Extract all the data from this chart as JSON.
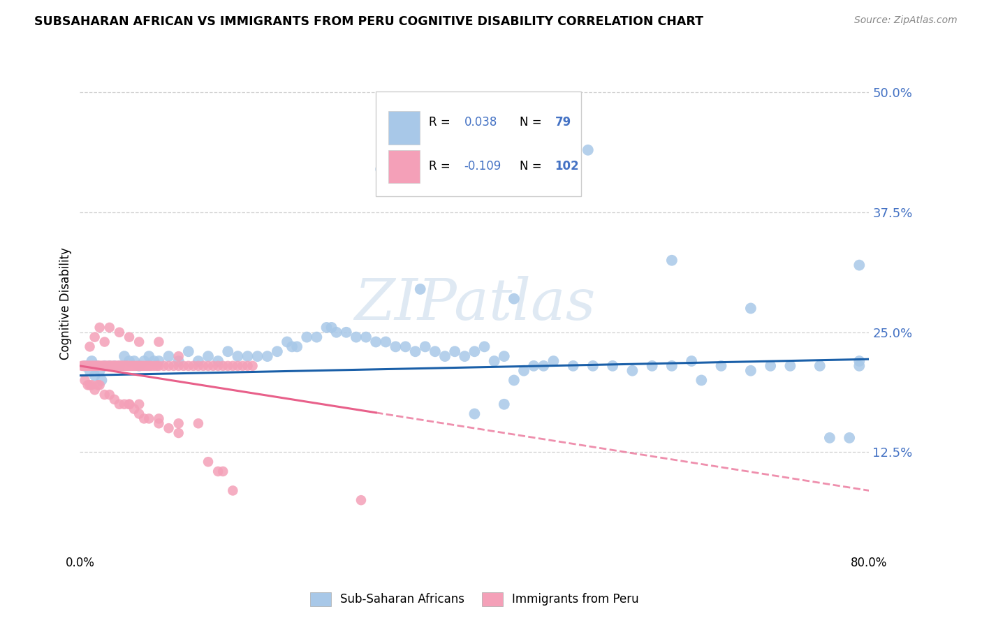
{
  "title": "SUBSAHARAN AFRICAN VS IMMIGRANTS FROM PERU COGNITIVE DISABILITY CORRELATION CHART",
  "source": "Source: ZipAtlas.com",
  "ylabel": "Cognitive Disability",
  "ytick_labels": [
    "50.0%",
    "37.5%",
    "25.0%",
    "12.5%"
  ],
  "ytick_values": [
    0.5,
    0.375,
    0.25,
    0.125
  ],
  "xmin": 0.0,
  "xmax": 0.8,
  "ymin": 0.02,
  "ymax": 0.54,
  "legend_label_blue": "Sub-Saharan Africans",
  "legend_label_pink": "Immigrants from Peru",
  "R_blue": "0.038",
  "N_blue": "79",
  "R_pink": "-0.109",
  "N_pink": "102",
  "blue_color": "#a8c8e8",
  "pink_color": "#f4a0b8",
  "trend_blue_color": "#1a5fa8",
  "trend_pink_color": "#e8608a",
  "watermark_text": "ZIPatlas",
  "background_color": "#ffffff",
  "grid_color": "#cccccc",
  "blue_x": [
    0.005,
    0.01,
    0.012,
    0.015,
    0.018,
    0.02,
    0.022,
    0.025,
    0.03,
    0.035,
    0.04,
    0.045,
    0.05,
    0.055,
    0.06,
    0.065,
    0.07,
    0.075,
    0.08,
    0.09,
    0.1,
    0.11,
    0.12,
    0.13,
    0.14,
    0.15,
    0.16,
    0.17,
    0.18,
    0.19,
    0.2,
    0.21,
    0.215,
    0.22,
    0.23,
    0.24,
    0.25,
    0.255,
    0.26,
    0.27,
    0.28,
    0.29,
    0.3,
    0.31,
    0.32,
    0.33,
    0.34,
    0.35,
    0.36,
    0.37,
    0.38,
    0.39,
    0.4,
    0.41,
    0.42,
    0.43,
    0.44,
    0.45,
    0.46,
    0.47,
    0.48,
    0.5,
    0.52,
    0.54,
    0.56,
    0.58,
    0.6,
    0.62,
    0.63,
    0.65,
    0.68,
    0.7,
    0.72,
    0.75,
    0.76,
    0.78,
    0.79,
    0.79,
    0.4,
    0.43
  ],
  "blue_y": [
    0.215,
    0.21,
    0.22,
    0.205,
    0.215,
    0.21,
    0.2,
    0.215,
    0.215,
    0.215,
    0.215,
    0.225,
    0.22,
    0.22,
    0.215,
    0.22,
    0.225,
    0.22,
    0.22,
    0.225,
    0.22,
    0.23,
    0.22,
    0.225,
    0.22,
    0.23,
    0.225,
    0.225,
    0.225,
    0.225,
    0.23,
    0.24,
    0.235,
    0.235,
    0.245,
    0.245,
    0.255,
    0.255,
    0.25,
    0.25,
    0.245,
    0.245,
    0.24,
    0.24,
    0.235,
    0.235,
    0.23,
    0.235,
    0.23,
    0.225,
    0.23,
    0.225,
    0.23,
    0.235,
    0.22,
    0.225,
    0.2,
    0.21,
    0.215,
    0.215,
    0.22,
    0.215,
    0.215,
    0.215,
    0.21,
    0.215,
    0.215,
    0.22,
    0.2,
    0.215,
    0.21,
    0.215,
    0.215,
    0.215,
    0.14,
    0.14,
    0.22,
    0.215,
    0.165,
    0.175
  ],
  "blue_outliers_x": [
    0.305,
    0.515,
    0.345,
    0.44,
    0.6,
    0.68,
    0.79
  ],
  "blue_outliers_y": [
    0.42,
    0.44,
    0.295,
    0.285,
    0.325,
    0.275,
    0.32
  ],
  "pink_x": [
    0.002,
    0.003,
    0.004,
    0.005,
    0.006,
    0.007,
    0.008,
    0.009,
    0.01,
    0.011,
    0.012,
    0.013,
    0.014,
    0.015,
    0.016,
    0.017,
    0.018,
    0.019,
    0.02,
    0.021,
    0.022,
    0.023,
    0.024,
    0.025,
    0.026,
    0.027,
    0.028,
    0.029,
    0.03,
    0.031,
    0.032,
    0.033,
    0.034,
    0.035,
    0.036,
    0.037,
    0.038,
    0.039,
    0.04,
    0.041,
    0.042,
    0.043,
    0.044,
    0.045,
    0.046,
    0.047,
    0.048,
    0.049,
    0.05,
    0.052,
    0.054,
    0.056,
    0.058,
    0.06,
    0.062,
    0.064,
    0.066,
    0.068,
    0.07,
    0.072,
    0.075,
    0.078,
    0.08,
    0.085,
    0.09,
    0.095,
    0.1,
    0.105,
    0.11,
    0.115,
    0.12,
    0.125,
    0.13,
    0.135,
    0.14,
    0.145,
    0.15,
    0.155,
    0.16,
    0.165,
    0.17,
    0.175,
    0.005,
    0.008,
    0.01,
    0.012,
    0.015,
    0.018,
    0.02,
    0.025,
    0.03,
    0.035,
    0.04,
    0.045,
    0.05,
    0.055,
    0.06,
    0.065,
    0.07,
    0.08,
    0.09,
    0.1
  ],
  "pink_y": [
    0.215,
    0.215,
    0.215,
    0.215,
    0.215,
    0.215,
    0.215,
    0.215,
    0.215,
    0.215,
    0.215,
    0.215,
    0.215,
    0.215,
    0.215,
    0.215,
    0.215,
    0.215,
    0.215,
    0.215,
    0.215,
    0.215,
    0.215,
    0.215,
    0.215,
    0.215,
    0.215,
    0.215,
    0.215,
    0.215,
    0.215,
    0.215,
    0.215,
    0.215,
    0.215,
    0.215,
    0.215,
    0.215,
    0.215,
    0.215,
    0.215,
    0.215,
    0.215,
    0.215,
    0.215,
    0.215,
    0.215,
    0.215,
    0.215,
    0.215,
    0.215,
    0.215,
    0.215,
    0.215,
    0.215,
    0.215,
    0.215,
    0.215,
    0.215,
    0.215,
    0.215,
    0.215,
    0.215,
    0.215,
    0.215,
    0.215,
    0.215,
    0.215,
    0.215,
    0.215,
    0.215,
    0.215,
    0.215,
    0.215,
    0.215,
    0.215,
    0.215,
    0.215,
    0.215,
    0.215,
    0.215,
    0.215,
    0.2,
    0.195,
    0.195,
    0.195,
    0.19,
    0.195,
    0.195,
    0.185,
    0.185,
    0.18,
    0.175,
    0.175,
    0.175,
    0.17,
    0.165,
    0.16,
    0.16,
    0.155,
    0.15,
    0.145
  ],
  "pink_outliers_x": [
    0.01,
    0.015,
    0.02,
    0.025,
    0.03,
    0.04,
    0.05,
    0.06,
    0.08,
    0.1,
    0.05,
    0.06,
    0.08,
    0.1,
    0.12,
    0.13,
    0.14,
    0.145,
    0.155,
    0.285
  ],
  "pink_outliers_y": [
    0.235,
    0.245,
    0.255,
    0.24,
    0.255,
    0.25,
    0.245,
    0.24,
    0.24,
    0.225,
    0.175,
    0.175,
    0.16,
    0.155,
    0.155,
    0.115,
    0.105,
    0.105,
    0.085,
    0.075
  ],
  "trend_blue_x0": 0.0,
  "trend_blue_y0": 0.205,
  "trend_blue_x1": 0.8,
  "trend_blue_y1": 0.222,
  "trend_pink_x0": 0.0,
  "trend_pink_y0": 0.215,
  "trend_pink_x1": 0.8,
  "trend_pink_y1": 0.085
}
